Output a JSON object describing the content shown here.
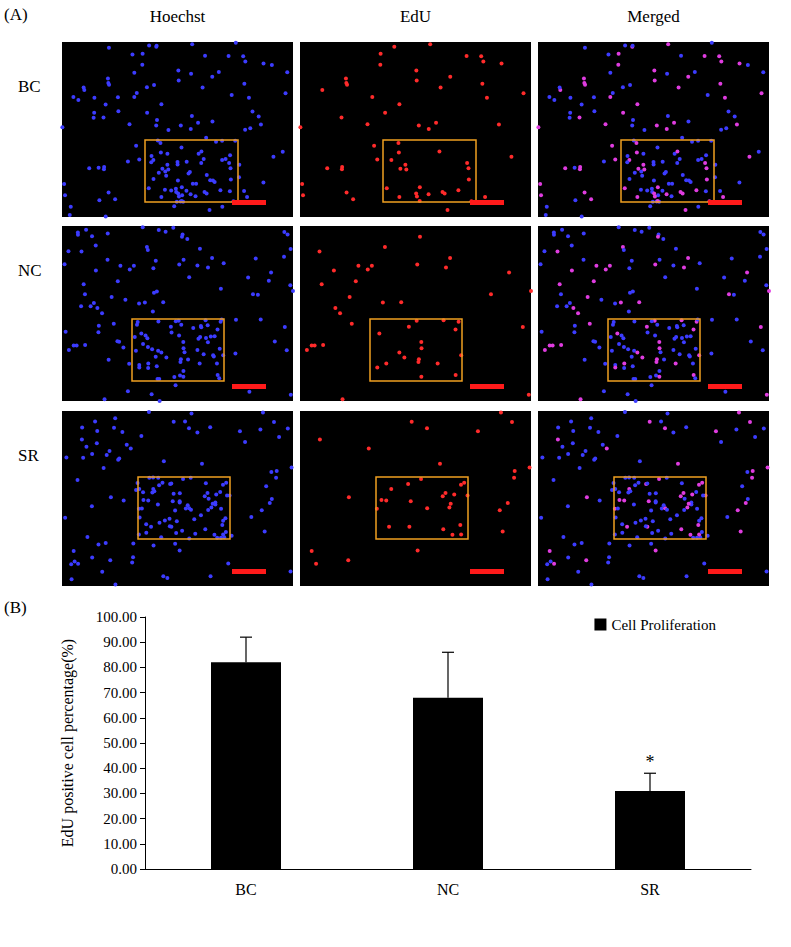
{
  "panel_a": {
    "label": "(A)",
    "columns": [
      "Hoechst",
      "EdU",
      "Merged"
    ],
    "rows": [
      "BC",
      "NC",
      "SR"
    ]
  },
  "panel_b": {
    "label": "(B)"
  },
  "chart_data": {
    "type": "bar",
    "ylabel": "EdU positive cell percentage(%)",
    "categories": [
      "BC",
      "NC",
      "SR"
    ],
    "series": [
      {
        "name": "Cell Proliferation",
        "color": "#000000",
        "values": [
          82,
          68,
          31
        ],
        "errors": [
          10,
          18,
          7
        ]
      }
    ],
    "ylim": [
      0,
      100
    ],
    "yticks": [
      {
        "value": 0,
        "label": "0.00"
      },
      {
        "value": 10,
        "label": "10.00"
      },
      {
        "value": 20,
        "label": "20.00"
      },
      {
        "value": 30,
        "label": "30.00"
      },
      {
        "value": 40,
        "label": "40.00"
      },
      {
        "value": 50,
        "label": "50.00"
      },
      {
        "value": 60,
        "label": "60.00"
      },
      {
        "value": 70,
        "label": "70.00"
      },
      {
        "value": 80,
        "label": "80.00"
      },
      {
        "value": 90,
        "label": "90.00"
      },
      {
        "value": 100,
        "label": "100.00"
      }
    ],
    "grid": false,
    "legend": "top-right",
    "annotations": [
      {
        "text": "*",
        "category": "SR"
      }
    ]
  }
}
